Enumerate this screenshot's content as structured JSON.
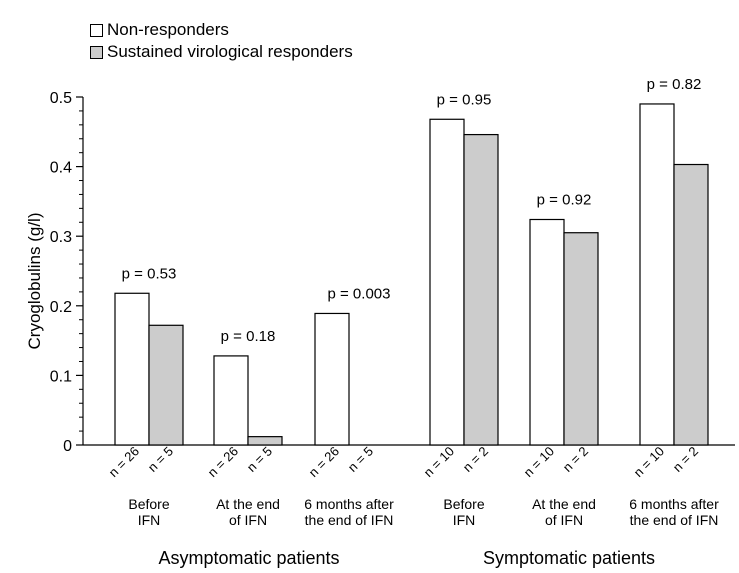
{
  "chart_data": {
    "type": "bar",
    "ylabel": "Cryoglobulins (g/l)",
    "ylim": [
      0,
      0.5
    ],
    "yticks": [
      "0",
      "0.1",
      "0.2",
      "0.3",
      "0.4",
      "0.5"
    ],
    "series": [
      {
        "name": "Non-responders",
        "color": "#ffffff",
        "values": [
          0.218,
          0.128,
          0.189,
          0.468,
          0.324,
          0.49
        ]
      },
      {
        "name": "Sustained virological responders",
        "color": "#cccccc",
        "values": [
          0.172,
          0.012,
          0.0,
          0.446,
          0.305,
          0.403
        ]
      }
    ],
    "groups": [
      {
        "label": "Asymptomatic patients",
        "categories": [
          {
            "label": [
              "Before",
              "IFN"
            ],
            "p": "p = 0.53",
            "n": [
              "n = 26",
              "n = 5"
            ]
          },
          {
            "label": [
              "At the end",
              "of IFN"
            ],
            "p": "p = 0.18",
            "n": [
              "n = 26",
              "n = 5"
            ]
          },
          {
            "label": [
              "6 months after",
              "the end of IFN"
            ],
            "p": "p = 0.003",
            "n": [
              "n = 26",
              "n = 5"
            ]
          }
        ]
      },
      {
        "label": "Symptomatic patients",
        "categories": [
          {
            "label": [
              "Before",
              "IFN"
            ],
            "p": "p = 0.95",
            "n": [
              "n = 10",
              "n = 2"
            ]
          },
          {
            "label": [
              "At the end",
              "of IFN"
            ],
            "p": "p = 0.92",
            "n": [
              "n = 10",
              "n = 2"
            ]
          },
          {
            "label": [
              "6 months after",
              "the end of IFN"
            ],
            "p": "p = 0.82",
            "n": [
              "n = 10",
              "n = 2"
            ]
          }
        ]
      }
    ]
  },
  "legend": {
    "items": [
      {
        "label": "Non-responders",
        "color": "#ffffff"
      },
      {
        "label": "Sustained virological responders",
        "color": "#cccccc"
      }
    ]
  }
}
